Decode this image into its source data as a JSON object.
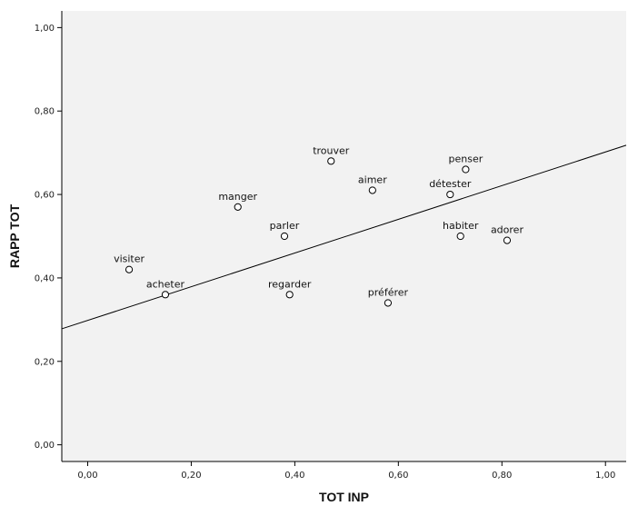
{
  "chart_data": {
    "type": "scatter",
    "xlabel": "TOT INP",
    "ylabel": "RAPP TOT",
    "xlim": [
      -0.05,
      1.04
    ],
    "ylim": [
      -0.04,
      1.04
    ],
    "xticks": [
      {
        "value": 0.0,
        "label": "0,00"
      },
      {
        "value": 0.2,
        "label": "0,20"
      },
      {
        "value": 0.4,
        "label": "0,40"
      },
      {
        "value": 0.6,
        "label": "0,60"
      },
      {
        "value": 0.8,
        "label": "0,80"
      },
      {
        "value": 1.0,
        "label": "1,00"
      }
    ],
    "yticks": [
      {
        "value": 0.0,
        "label": "0,00"
      },
      {
        "value": 0.2,
        "label": "0,20"
      },
      {
        "value": 0.4,
        "label": "0,40"
      },
      {
        "value": 0.6,
        "label": "0,60"
      },
      {
        "value": 0.8,
        "label": "0,80"
      },
      {
        "value": 1.0,
        "label": "1,00"
      }
    ],
    "points": [
      {
        "label": "visiter",
        "x": 0.08,
        "y": 0.42
      },
      {
        "label": "acheter",
        "x": 0.15,
        "y": 0.36
      },
      {
        "label": "manger",
        "x": 0.29,
        "y": 0.57
      },
      {
        "label": "parler",
        "x": 0.38,
        "y": 0.5
      },
      {
        "label": "regarder",
        "x": 0.39,
        "y": 0.36
      },
      {
        "label": "trouver",
        "x": 0.47,
        "y": 0.68
      },
      {
        "label": "aimer",
        "x": 0.55,
        "y": 0.61
      },
      {
        "label": "préférer",
        "x": 0.58,
        "y": 0.34
      },
      {
        "label": "détester",
        "x": 0.7,
        "y": 0.6
      },
      {
        "label": "habiter",
        "x": 0.72,
        "y": 0.5
      },
      {
        "label": "penser",
        "x": 0.73,
        "y": 0.66
      },
      {
        "label": "adorer",
        "x": 0.81,
        "y": 0.49
      }
    ],
    "fit_line": {
      "x": [
        -0.05,
        1.04
      ],
      "y": [
        0.278,
        0.718
      ]
    },
    "grid": false,
    "legend": "none",
    "colors": {
      "background": "#ffffff",
      "plot_background": "#f2f2f2",
      "axis": "#000000",
      "points": "#000000"
    }
  }
}
